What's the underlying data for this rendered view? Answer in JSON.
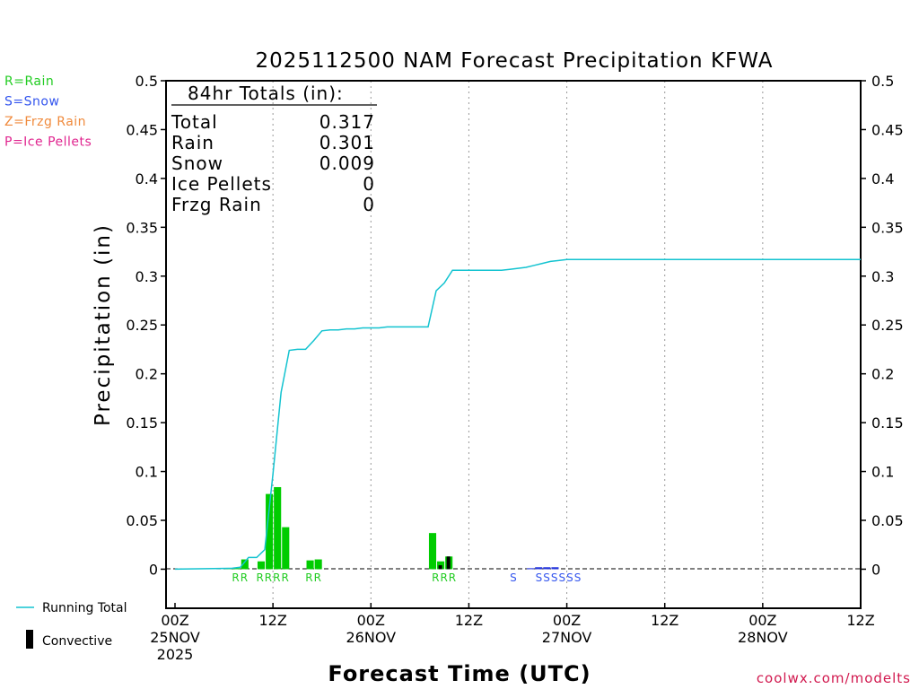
{
  "chart_data": {
    "type": "bar",
    "title": "2025112500 NAM Forecast Precipitation KFWA",
    "ylabel": "Precipitation  (in)",
    "xlabel": "Forecast Time (UTC)",
    "source": "coolwx.com/modelts",
    "ylim": [
      -0.04,
      0.5
    ],
    "xlim_hours": [
      0,
      84
    ],
    "y_ticks": [
      {
        "value": 0,
        "label": "0"
      },
      {
        "value": 0.05,
        "label": "0.05"
      },
      {
        "value": 0.1,
        "label": "0.1"
      },
      {
        "value": 0.15,
        "label": "0.15"
      },
      {
        "value": 0.2,
        "label": "0.2"
      },
      {
        "value": 0.25,
        "label": "0.25"
      },
      {
        "value": 0.3,
        "label": "0.3"
      },
      {
        "value": 0.35,
        "label": "0.35"
      },
      {
        "value": 0.4,
        "label": "0.4"
      },
      {
        "value": 0.45,
        "label": "0.45"
      },
      {
        "value": 0.5,
        "label": "0.5"
      }
    ],
    "x_ticks": [
      {
        "hour": 0,
        "lines": [
          "00Z",
          "25NOV",
          "2025"
        ]
      },
      {
        "hour": 12,
        "lines": [
          "12Z"
        ]
      },
      {
        "hour": 24,
        "lines": [
          "00Z",
          "26NOV"
        ]
      },
      {
        "hour": 36,
        "lines": [
          "12Z"
        ]
      },
      {
        "hour": 48,
        "lines": [
          "00Z",
          "27NOV"
        ]
      },
      {
        "hour": 60,
        "lines": [
          "12Z"
        ]
      },
      {
        "hour": 72,
        "lines": [
          "00Z",
          "28NOV"
        ]
      },
      {
        "hour": 84,
        "lines": [
          "12Z"
        ]
      }
    ],
    "legend_types": [
      {
        "label": "R=Rain",
        "color": "#22cc22"
      },
      {
        "label": "S=Snow",
        "color": "#3355ee"
      },
      {
        "label": "Z=Frzg Rain",
        "color": "#f08a3c"
      },
      {
        "label": "P=Ice Pellets",
        "color": "#e0258f"
      }
    ],
    "legend_series": {
      "running_total": "Running Total",
      "convective": "Convective"
    },
    "totals": {
      "header": "84hr Totals (in):",
      "rows": [
        {
          "label": "Total",
          "value": "0.317"
        },
        {
          "label": "Rain",
          "value": "0.301"
        },
        {
          "label": "Snow",
          "value": "0.009"
        },
        {
          "label": "Ice Pellets",
          "value": "0"
        },
        {
          "label": "Frzg Rain",
          "value": "0"
        }
      ]
    },
    "colors": {
      "rain": "#00cc00",
      "snow": "#2233dd",
      "total_line": "#13c3d0",
      "convective": "#000000"
    },
    "bars": [
      {
        "hour": 7,
        "value": 0.001,
        "type": "R"
      },
      {
        "hour": 8,
        "value": 0.001,
        "type": "R"
      },
      {
        "hour": 9,
        "value": 0.01,
        "type": "R"
      },
      {
        "hour": 11,
        "value": 0.008,
        "type": "R"
      },
      {
        "hour": 12,
        "value": 0.077,
        "type": "R"
      },
      {
        "hour": 13,
        "value": 0.084,
        "type": "R"
      },
      {
        "hour": 14,
        "value": 0.043,
        "type": "R"
      },
      {
        "hour": 17,
        "value": 0.009,
        "type": "R"
      },
      {
        "hour": 18,
        "value": 0.01,
        "type": "R"
      },
      {
        "hour": 32,
        "value": 0.037,
        "type": "R"
      },
      {
        "hour": 33,
        "value": 0.008,
        "type": "R"
      },
      {
        "hour": 34,
        "value": 0.013,
        "type": "R"
      },
      {
        "hour": 44,
        "value": 0.001,
        "type": "S"
      },
      {
        "hour": 45,
        "value": 0.002,
        "type": "S"
      },
      {
        "hour": 46,
        "value": 0.002,
        "type": "S"
      },
      {
        "hour": 47,
        "value": 0.002,
        "type": "S"
      }
    ],
    "convective": [
      {
        "hour": 33,
        "value": 0.004
      },
      {
        "hour": 34,
        "value": 0.013
      }
    ],
    "ptype_labels": [
      {
        "hour": 8.5,
        "text": "RR",
        "type": "R"
      },
      {
        "hour": 12.5,
        "text": "RRRR",
        "type": "R"
      },
      {
        "hour": 17.5,
        "text": "RR",
        "type": "R"
      },
      {
        "hour": 33.5,
        "text": "RRR",
        "type": "R"
      },
      {
        "hour": 42,
        "text": "S",
        "type": "S"
      },
      {
        "hour": 47.5,
        "text": "SSSSSS",
        "type": "S"
      }
    ],
    "running_total": {
      "hours": [
        0,
        7,
        8,
        9,
        10,
        11,
        12,
        13,
        14,
        15,
        16,
        17,
        18,
        19,
        20,
        21,
        22,
        23,
        24,
        25,
        26,
        27,
        28,
        29,
        30,
        31,
        32,
        33,
        34,
        35,
        36,
        37,
        38,
        39,
        40,
        41,
        42,
        43,
        44,
        45,
        46,
        47,
        48,
        49,
        50,
        84
      ],
      "values": [
        0,
        0.001,
        0.002,
        0.012,
        0.012,
        0.02,
        0.097,
        0.181,
        0.224,
        0.225,
        0.225,
        0.234,
        0.244,
        0.245,
        0.245,
        0.246,
        0.246,
        0.247,
        0.247,
        0.247,
        0.248,
        0.248,
        0.248,
        0.248,
        0.248,
        0.248,
        0.285,
        0.293,
        0.306,
        0.306,
        0.306,
        0.306,
        0.306,
        0.306,
        0.306,
        0.307,
        0.308,
        0.309,
        0.311,
        0.313,
        0.315,
        0.316,
        0.317,
        0.317,
        0.317,
        0.317
      ]
    }
  }
}
